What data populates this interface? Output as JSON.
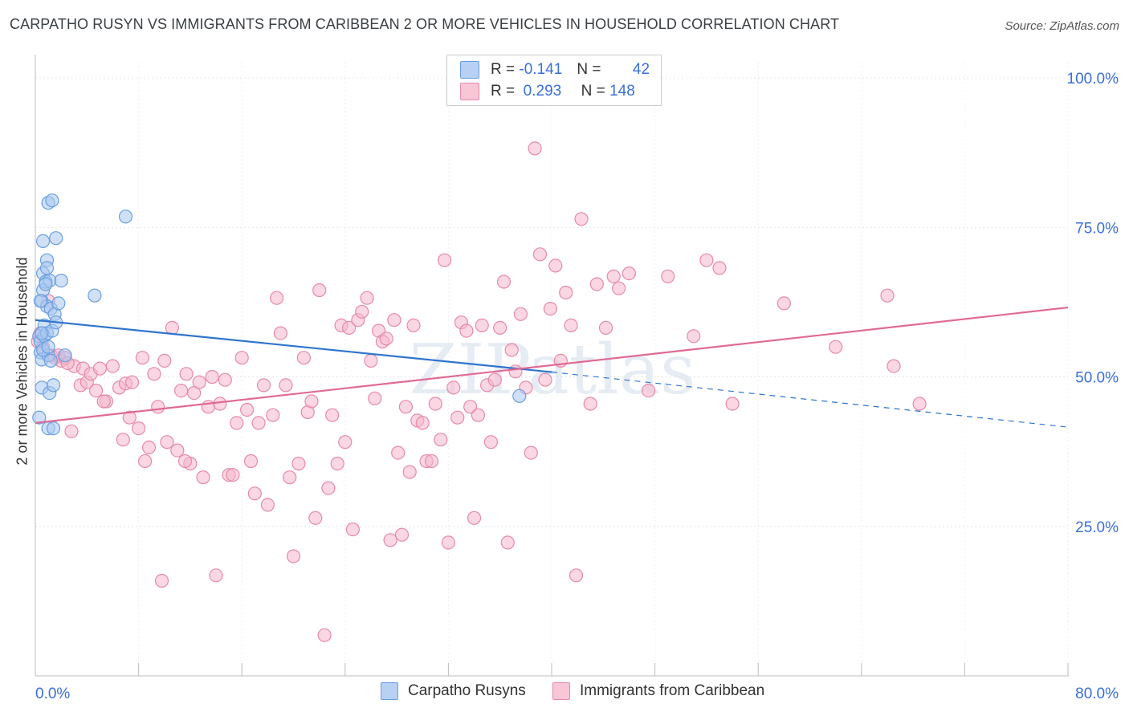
{
  "title": "CARPATHO RUSYN VS IMMIGRANTS FROM CARIBBEAN 2 OR MORE VEHICLES IN HOUSEHOLD CORRELATION CHART",
  "source": "Source: ZipAtlas.com",
  "watermark": "ZIPatlas",
  "legend": {
    "rows": [
      {
        "r_label": "R =",
        "r_value": "-0.141",
        "n_label": "N =",
        "n_value": "42"
      },
      {
        "r_label": "R =",
        "r_value": "0.293",
        "n_label": "N =",
        "n_value": "148"
      }
    ]
  },
  "colors": {
    "blue_fill": "#a9c8f0",
    "blue_stroke": "#6a9ee0",
    "blue_line": "#2f74d0",
    "pink_fill": "#f6b6cb",
    "pink_stroke": "#e68aa8",
    "pink_line": "#e06a94",
    "tick_label": "#3a6fd8",
    "grid": "#e4e4e4"
  },
  "chart_data": {
    "type": "scatter",
    "xlabel": "",
    "ylabel": "2 or more Vehicles in Household",
    "xlim": [
      0,
      80
    ],
    "ylim": [
      0,
      102
    ],
    "x_tick_labels": [
      "0.0%",
      "80.0%"
    ],
    "y_ticks": [
      25,
      50,
      75,
      100
    ],
    "y_tick_labels": [
      "25.0%",
      "50.0%",
      "75.0%",
      "100.0%"
    ],
    "grid": true,
    "legend_position": "bottom",
    "series": [
      {
        "name": "Carpatho Rusyns",
        "color": "#a9c8f0",
        "trend": {
          "x0": 0,
          "y0": 59.5,
          "x1": 40,
          "y1": 50.8,
          "x_dash_end": 80,
          "y_dash_end": 41.6
        },
        "points": [
          [
            0.3,
            56.8
          ],
          [
            0.3,
            43.2
          ],
          [
            0.4,
            55.9
          ],
          [
            0.4,
            54.1
          ],
          [
            0.5,
            62.7
          ],
          [
            0.5,
            52.9
          ],
          [
            0.5,
            48.2
          ],
          [
            0.6,
            64.5
          ],
          [
            0.6,
            72.7
          ],
          [
            0.6,
            67.3
          ],
          [
            0.7,
            58.6
          ],
          [
            0.7,
            56.8
          ],
          [
            0.8,
            65.9
          ],
          [
            0.9,
            69.5
          ],
          [
            0.9,
            68.2
          ],
          [
            0.9,
            61.8
          ],
          [
            0.9,
            57.3
          ],
          [
            1.0,
            53.6
          ],
          [
            1.0,
            41.4
          ],
          [
            1.0,
            79.1
          ],
          [
            1.1,
            66.1
          ],
          [
            1.1,
            47.3
          ],
          [
            1.2,
            61.4
          ],
          [
            1.3,
            79.5
          ],
          [
            1.3,
            57.7
          ],
          [
            1.4,
            48.6
          ],
          [
            1.4,
            41.4
          ],
          [
            1.5,
            60.5
          ],
          [
            1.6,
            59.1
          ],
          [
            1.6,
            73.2
          ],
          [
            1.8,
            62.3
          ],
          [
            2.0,
            66.1
          ],
          [
            2.3,
            53.6
          ],
          [
            4.6,
            63.6
          ],
          [
            7.0,
            76.8
          ],
          [
            0.4,
            62.7
          ],
          [
            0.5,
            57.3
          ],
          [
            0.6,
            54.5
          ],
          [
            0.8,
            65.5
          ],
          [
            1.2,
            52.7
          ],
          [
            1.0,
            55.0
          ],
          [
            37.5,
            46.8
          ]
        ]
      },
      {
        "name": "Immigrants from Caribbean",
        "color": "#f6b6cb",
        "trend": {
          "x0": 0,
          "y0": 42.3,
          "x1": 80,
          "y1": 61.6
        },
        "points": [
          [
            0.2,
            55.9
          ],
          [
            0.4,
            57.3
          ],
          [
            0.6,
            55.0
          ],
          [
            1.0,
            62.7
          ],
          [
            1.2,
            53.6
          ],
          [
            1.5,
            53.2
          ],
          [
            1.8,
            53.6
          ],
          [
            2.0,
            52.7
          ],
          [
            2.3,
            53.2
          ],
          [
            2.8,
            40.9
          ],
          [
            3.0,
            51.8
          ],
          [
            3.5,
            48.6
          ],
          [
            3.7,
            51.4
          ],
          [
            4.0,
            49.1
          ],
          [
            4.3,
            50.5
          ],
          [
            4.7,
            47.7
          ],
          [
            5.0,
            51.4
          ],
          [
            5.5,
            45.9
          ],
          [
            6.0,
            51.8
          ],
          [
            6.5,
            48.2
          ],
          [
            6.8,
            39.5
          ],
          [
            7.0,
            48.9
          ],
          [
            7.3,
            43.2
          ],
          [
            7.5,
            49.1
          ],
          [
            8.0,
            41.4
          ],
          [
            8.3,
            53.2
          ],
          [
            8.5,
            35.9
          ],
          [
            8.8,
            38.2
          ],
          [
            9.2,
            50.5
          ],
          [
            9.5,
            45.0
          ],
          [
            9.8,
            15.9
          ],
          [
            10.0,
            52.7
          ],
          [
            10.2,
            39.1
          ],
          [
            10.6,
            58.2
          ],
          [
            11.0,
            37.7
          ],
          [
            11.3,
            47.7
          ],
          [
            11.7,
            50.5
          ],
          [
            12.0,
            35.5
          ],
          [
            12.3,
            47.3
          ],
          [
            12.7,
            49.1
          ],
          [
            13.0,
            33.2
          ],
          [
            13.4,
            45.0
          ],
          [
            13.7,
            50.0
          ],
          [
            14.0,
            16.8
          ],
          [
            14.3,
            45.5
          ],
          [
            14.7,
            49.5
          ],
          [
            15.0,
            33.6
          ],
          [
            15.3,
            33.6
          ],
          [
            15.6,
            42.3
          ],
          [
            16.0,
            53.2
          ],
          [
            16.4,
            44.5
          ],
          [
            16.7,
            35.9
          ],
          [
            17.0,
            30.5
          ],
          [
            17.3,
            42.3
          ],
          [
            17.7,
            48.6
          ],
          [
            18.0,
            28.6
          ],
          [
            18.4,
            43.6
          ],
          [
            18.7,
            63.2
          ],
          [
            19.0,
            57.3
          ],
          [
            19.4,
            48.6
          ],
          [
            19.7,
            33.2
          ],
          [
            20.0,
            20.0
          ],
          [
            20.4,
            35.5
          ],
          [
            20.8,
            53.2
          ],
          [
            21.1,
            44.1
          ],
          [
            21.4,
            45.9
          ],
          [
            21.7,
            26.4
          ],
          [
            22.0,
            64.5
          ],
          [
            22.4,
            6.8
          ],
          [
            22.7,
            31.4
          ],
          [
            23.0,
            43.6
          ],
          [
            23.4,
            35.5
          ],
          [
            23.7,
            58.6
          ],
          [
            24.0,
            39.1
          ],
          [
            24.3,
            58.2
          ],
          [
            24.6,
            24.5
          ],
          [
            25.0,
            59.5
          ],
          [
            25.3,
            60.9
          ],
          [
            25.7,
            63.2
          ],
          [
            26.0,
            52.7
          ],
          [
            26.3,
            46.4
          ],
          [
            26.6,
            57.7
          ],
          [
            26.9,
            55.9
          ],
          [
            27.2,
            56.4
          ],
          [
            27.5,
            22.7
          ],
          [
            27.8,
            59.5
          ],
          [
            28.1,
            37.3
          ],
          [
            28.4,
            23.6
          ],
          [
            28.7,
            45.0
          ],
          [
            29.0,
            34.1
          ],
          [
            29.3,
            58.6
          ],
          [
            29.6,
            42.7
          ],
          [
            30.0,
            42.3
          ],
          [
            30.3,
            35.9
          ],
          [
            30.7,
            35.9
          ],
          [
            31.0,
            45.5
          ],
          [
            31.4,
            39.5
          ],
          [
            31.7,
            69.5
          ],
          [
            32.0,
            22.3
          ],
          [
            32.4,
            48.2
          ],
          [
            32.7,
            43.2
          ],
          [
            33.0,
            59.1
          ],
          [
            33.4,
            57.7
          ],
          [
            33.7,
            45.0
          ],
          [
            34.0,
            26.4
          ],
          [
            34.3,
            43.6
          ],
          [
            34.6,
            58.6
          ],
          [
            35.0,
            48.6
          ],
          [
            35.3,
            39.1
          ],
          [
            35.6,
            49.5
          ],
          [
            36.0,
            58.2
          ],
          [
            36.3,
            65.9
          ],
          [
            36.6,
            22.3
          ],
          [
            36.9,
            54.5
          ],
          [
            37.2,
            50.9
          ],
          [
            37.6,
            60.5
          ],
          [
            38.0,
            48.2
          ],
          [
            38.4,
            37.3
          ],
          [
            38.7,
            88.2
          ],
          [
            39.1,
            70.5
          ],
          [
            39.5,
            49.5
          ],
          [
            39.9,
            61.4
          ],
          [
            40.3,
            68.6
          ],
          [
            40.7,
            52.7
          ],
          [
            41.1,
            64.1
          ],
          [
            41.5,
            58.6
          ],
          [
            41.9,
            16.8
          ],
          [
            42.3,
            76.4
          ],
          [
            43.0,
            45.5
          ],
          [
            43.5,
            65.5
          ],
          [
            44.2,
            58.2
          ],
          [
            44.8,
            66.8
          ],
          [
            45.2,
            64.8
          ],
          [
            46.0,
            67.3
          ],
          [
            47.5,
            47.7
          ],
          [
            49.0,
            66.8
          ],
          [
            51.0,
            56.8
          ],
          [
            52.0,
            69.5
          ],
          [
            53.0,
            68.2
          ],
          [
            54.0,
            45.5
          ],
          [
            58.0,
            62.3
          ],
          [
            62.0,
            55.0
          ],
          [
            66.0,
            63.6
          ],
          [
            66.5,
            51.8
          ],
          [
            68.5,
            45.5
          ],
          [
            2.5,
            52.3
          ],
          [
            5.3,
            45.9
          ],
          [
            11.6,
            35.9
          ]
        ]
      }
    ]
  }
}
